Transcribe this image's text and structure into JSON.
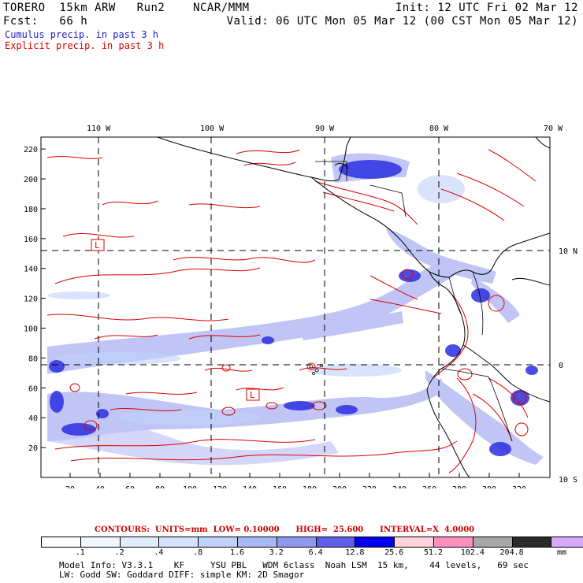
{
  "header": {
    "left1": "TORERO  15km ARW   Run2    NCAR/MMM",
    "left2": "Fcst:   66 h",
    "right1": "Init: 12 UTC Fri 02 Mar 12",
    "right2": "Valid: 06 UTC Mon 05 Mar 12 (00 CST Mon 05 Mar 12)",
    "cumulus": "Cumulus precip. in past 3 h",
    "explicit": "Explicit precip. in past 3 h",
    "cumulus_color": "#2020cc",
    "explicit_color": "#dd0000"
  },
  "map": {
    "top_labels": [
      "110 W",
      "100 W",
      "90 W",
      "80 W",
      "70 W"
    ],
    "right_labels": [
      "10 N",
      "0",
      "10 S"
    ],
    "y_ticks": [
      "220",
      "200",
      "180",
      "160",
      "140",
      "120",
      "100",
      "80",
      "60",
      "40",
      "20"
    ],
    "x_ticks": [
      "20",
      "40",
      "60",
      "80",
      "100",
      "120",
      "140",
      "160",
      "180",
      "200",
      "220",
      "240",
      "260",
      "280",
      "300",
      "320"
    ],
    "markers": [
      "L",
      "L"
    ],
    "contour_color": "#dd0000",
    "grid": "dashed"
  },
  "colorbar": {
    "caption": "CONTOURS:  UNITS=mm  LOW= 0.10000      HIGH=  25.600      INTERVAL=X  4.0000",
    "labels": [
      ".1",
      ".2",
      ".4",
      ".8",
      "1.6",
      "3.2",
      "6.4",
      "12.8",
      "25.6",
      "51.2",
      "102.4",
      "204.8"
    ],
    "unit": "mm",
    "colors": [
      "#ffffff",
      "#f2f6ff",
      "#e2ecff",
      "#d2e2ff",
      "#bfd2fa",
      "#a6b7f2",
      "#8f97ef",
      "#5b5ee6",
      "#0000ee",
      "#ffd4dc",
      "#ff90c0",
      "#a8a8a8",
      "#2a2a2a",
      "#d8a8ff"
    ]
  },
  "model_info": {
    "line1": "Model Info: V3.3.1    KF     YSU PBL   WDM 6class  Noah LSM  15 km,    44 levels,   69 sec",
    "line2": "LW: Godd SW: Goddard DIFF: simple KM: 2D Smagor"
  }
}
